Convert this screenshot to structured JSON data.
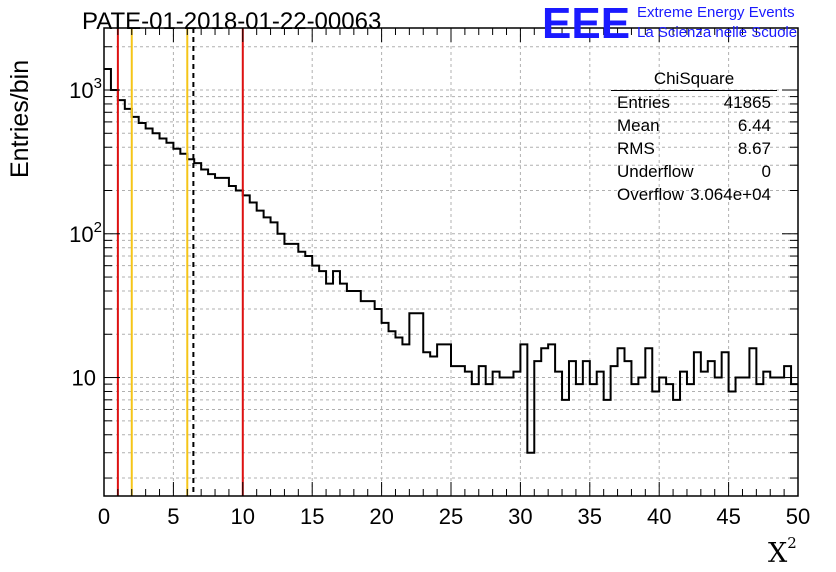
{
  "title": "PATE-01-2018-01-22-00063",
  "logo": {
    "mark": "EEE",
    "line1": "Extreme Energy Events",
    "line2": "La Scienza nelle Scuole"
  },
  "stats": {
    "title": "ChiSquare",
    "rows": [
      {
        "key": "Entries",
        "value": "41865"
      },
      {
        "key": "Mean",
        "value": "6.44"
      },
      {
        "key": "RMS",
        "value": "8.67"
      },
      {
        "key": "Underflow",
        "value": "0"
      },
      {
        "key": "Overflow",
        "value": "3.064e+04"
      }
    ]
  },
  "colors": {
    "histogram": "#000000",
    "red_line": "#dd1111",
    "yellow_line": "#f5c518",
    "dashed_line": "#000000",
    "grid": "#b0b0b0"
  },
  "chart_data": {
    "type": "histogram",
    "xlabel": "X",
    "xlabel_superscript": "2",
    "ylabel": "Entries/bin",
    "xlim": [
      0,
      50
    ],
    "ylim": [
      1.5,
      2700
    ],
    "log_y": true,
    "grid": true,
    "bin_width": 0.5,
    "x_ticks": [
      "0",
      "5",
      "10",
      "15",
      "20",
      "25",
      "30",
      "35",
      "40",
      "45",
      "50"
    ],
    "y_ticks": [
      {
        "value": 10,
        "label": "10"
      },
      {
        "value": 100,
        "label": "10",
        "exp": "2"
      },
      {
        "value": 1000,
        "label": "10",
        "exp": "3"
      }
    ],
    "values": [
      1400,
      1000,
      850,
      740,
      650,
      590,
      540,
      500,
      460,
      430,
      390,
      360,
      330,
      310,
      280,
      260,
      245,
      245,
      215,
      200,
      185,
      165,
      145,
      130,
      120,
      100,
      85,
      85,
      75,
      70,
      60,
      55,
      45,
      55,
      45,
      40,
      40,
      34,
      34,
      30,
      24,
      21,
      19,
      17,
      28,
      28,
      15,
      14,
      17,
      17,
      12,
      12,
      11,
      9,
      12,
      9,
      11,
      10,
      10,
      11,
      17,
      3,
      13,
      16,
      17,
      11,
      7,
      13,
      9,
      13,
      9,
      11,
      7,
      12,
      16,
      13,
      9,
      10,
      16,
      8,
      10,
      9,
      7,
      11,
      9,
      15,
      11,
      13,
      10,
      15,
      8,
      10,
      10,
      16,
      9,
      11,
      10,
      10,
      12,
      9
    ],
    "vertical_lines": [
      {
        "x": 1.0,
        "color": "red",
        "style": "solid"
      },
      {
        "x": 2.0,
        "color": "yellow",
        "style": "solid"
      },
      {
        "x": 6.0,
        "color": "yellow",
        "style": "solid"
      },
      {
        "x": 6.44,
        "color": "black",
        "style": "dashed"
      },
      {
        "x": 10.0,
        "color": "red",
        "style": "solid"
      }
    ]
  }
}
